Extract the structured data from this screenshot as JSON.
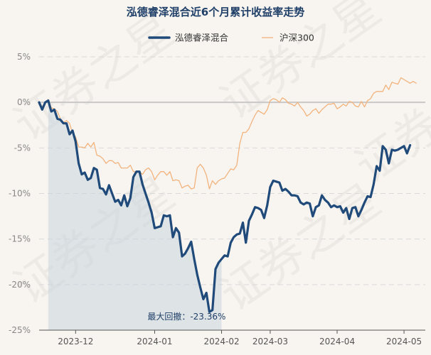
{
  "chart_data": {
    "type": "line",
    "title": "泓德睿泽混合近6个月累计收益率走势",
    "watermark": "证券之星",
    "ylim": [
      -25,
      5
    ],
    "yticks": [
      5,
      0,
      -5,
      -10,
      -15,
      -20,
      -25
    ],
    "ytick_labels": [
      "5%",
      "0%",
      "-5%",
      "-10%",
      "-15%",
      "-20%",
      "-25%"
    ],
    "x_range": [
      0,
      127
    ],
    "x_ticks": [
      {
        "label": "2023-12",
        "x": 12
      },
      {
        "label": "2024-01",
        "x": 38
      },
      {
        "label": "2024-02",
        "x": 60
      },
      {
        "label": "2024-03",
        "x": 76
      },
      {
        "label": "2024-04",
        "x": 98
      },
      {
        "label": "2024-05",
        "x": 120
      }
    ],
    "colors": {
      "fund": "#1f4a7a",
      "index": "#f2b37d",
      "drawdown_fill": "#c8d3de",
      "zero_line": "#c8c8c8",
      "grid": "#d9d9d9"
    },
    "drawdown": {
      "label": "最大回撤：-23.36%",
      "value": -23.36,
      "start_x": 3,
      "end_x": 60
    },
    "series": [
      {
        "name": "泓德睿泽混合",
        "values": [
          0.0,
          -0.8,
          0.0,
          0.2,
          -1.0,
          -0.8,
          -1.8,
          -1.9,
          -2.3,
          -2.3,
          -3.5,
          -3.1,
          -4.3,
          -6.7,
          -7.9,
          -7.7,
          -8.5,
          -8.3,
          -7.2,
          -7.4,
          -9.4,
          -9.5,
          -10.1,
          -9.1,
          -10.0,
          -10.9,
          -10.7,
          -11.3,
          -10.2,
          -11.4,
          -10.5,
          -8.2,
          -7.6,
          -7.6,
          -9.0,
          -10.0,
          -11.0,
          -12.1,
          -13.8,
          -13.7,
          -13.6,
          -12.4,
          -12.5,
          -12.4,
          -14.8,
          -13.8,
          -14.3,
          -16.9,
          -16.6,
          -16.0,
          -15.3,
          -17.2,
          -18.9,
          -20.3,
          -21.6,
          -20.9,
          -23.0,
          -22.8,
          -18.3,
          -17.6,
          -17.2,
          -16.8,
          -16.9,
          -15.4,
          -14.8,
          -14.5,
          -14.4,
          -13.2,
          -15.4,
          -13.0,
          -12.3,
          -11.5,
          -11.6,
          -11.8,
          -12.7,
          -11.3,
          -9.3,
          -8.6,
          -8.7,
          -8.8,
          -9.7,
          -9.5,
          -9.8,
          -10.2,
          -10.2,
          -10.3,
          -11.0,
          -11.2,
          -11.0,
          -11.1,
          -12.5,
          -11.5,
          -11.3,
          -10.2,
          -10.7,
          -11.0,
          -11.5,
          -11.3,
          -11.5,
          -11.4,
          -12.1,
          -11.6,
          -12.8,
          -11.6,
          -11.5,
          -12.5,
          -11.8,
          -11.0,
          -10.3,
          -10.4,
          -9.0,
          -7.0,
          -7.5,
          -4.8,
          -5.2,
          -6.7,
          -5.2,
          -5.3,
          -5.2,
          -5.0,
          -4.8,
          -5.6,
          -4.7
        ]
      },
      {
        "name": "沪深300",
        "values": [
          0.0,
          -0.5,
          0.0,
          0.3,
          -0.6,
          -0.7,
          -1.0,
          -1.8,
          -2.2,
          -2.0,
          -2.3,
          -3.4,
          -3.8,
          -4.9,
          -4.9,
          -5.0,
          -4.5,
          -4.9,
          -4.4,
          -5.8,
          -5.9,
          -6.2,
          -6.7,
          -6.4,
          -6.4,
          -6.7,
          -6.6,
          -7.2,
          -7.2,
          -7.2,
          -6.9,
          -7.6,
          -7.6,
          -7.6,
          -7.9,
          -7.4,
          -7.2,
          -7.6,
          -8.5,
          -8.0,
          -7.6,
          -7.6,
          -8.0,
          -7.6,
          -8.6,
          -8.5,
          -8.6,
          -9.4,
          -9.2,
          -9.1,
          -9.5,
          -9.4,
          -7.2,
          -6.8,
          -7.2,
          -8.0,
          -9.5,
          -8.6,
          -9.0,
          -8.6,
          -8.4,
          -8.3,
          -7.8,
          -7.3,
          -7.4,
          -6.9,
          -4.5,
          -3.3,
          -3.3,
          -2.9,
          -2.1,
          -1.4,
          -0.9,
          -1.1,
          -1.3,
          -0.8,
          0.2,
          0.4,
          0.3,
          0.0,
          0.5,
          0.3,
          -0.1,
          -0.2,
          -0.4,
          0.0,
          -0.5,
          -0.9,
          -1.5,
          -1.3,
          -0.9,
          -0.7,
          -1.2,
          -0.8,
          -0.5,
          -0.2,
          -0.2,
          -0.1,
          -0.7,
          -0.5,
          -0.2,
          -0.4,
          0.1,
          0.0,
          -0.4,
          -0.5,
          0.1,
          -0.5,
          0.2,
          0.4,
          1.0,
          1.2,
          1.2,
          1.2,
          1.9,
          1.4,
          2.2,
          2.1,
          2.0,
          2.7,
          2.5,
          2.3,
          2.1,
          2.3,
          2.1
        ]
      }
    ]
  }
}
